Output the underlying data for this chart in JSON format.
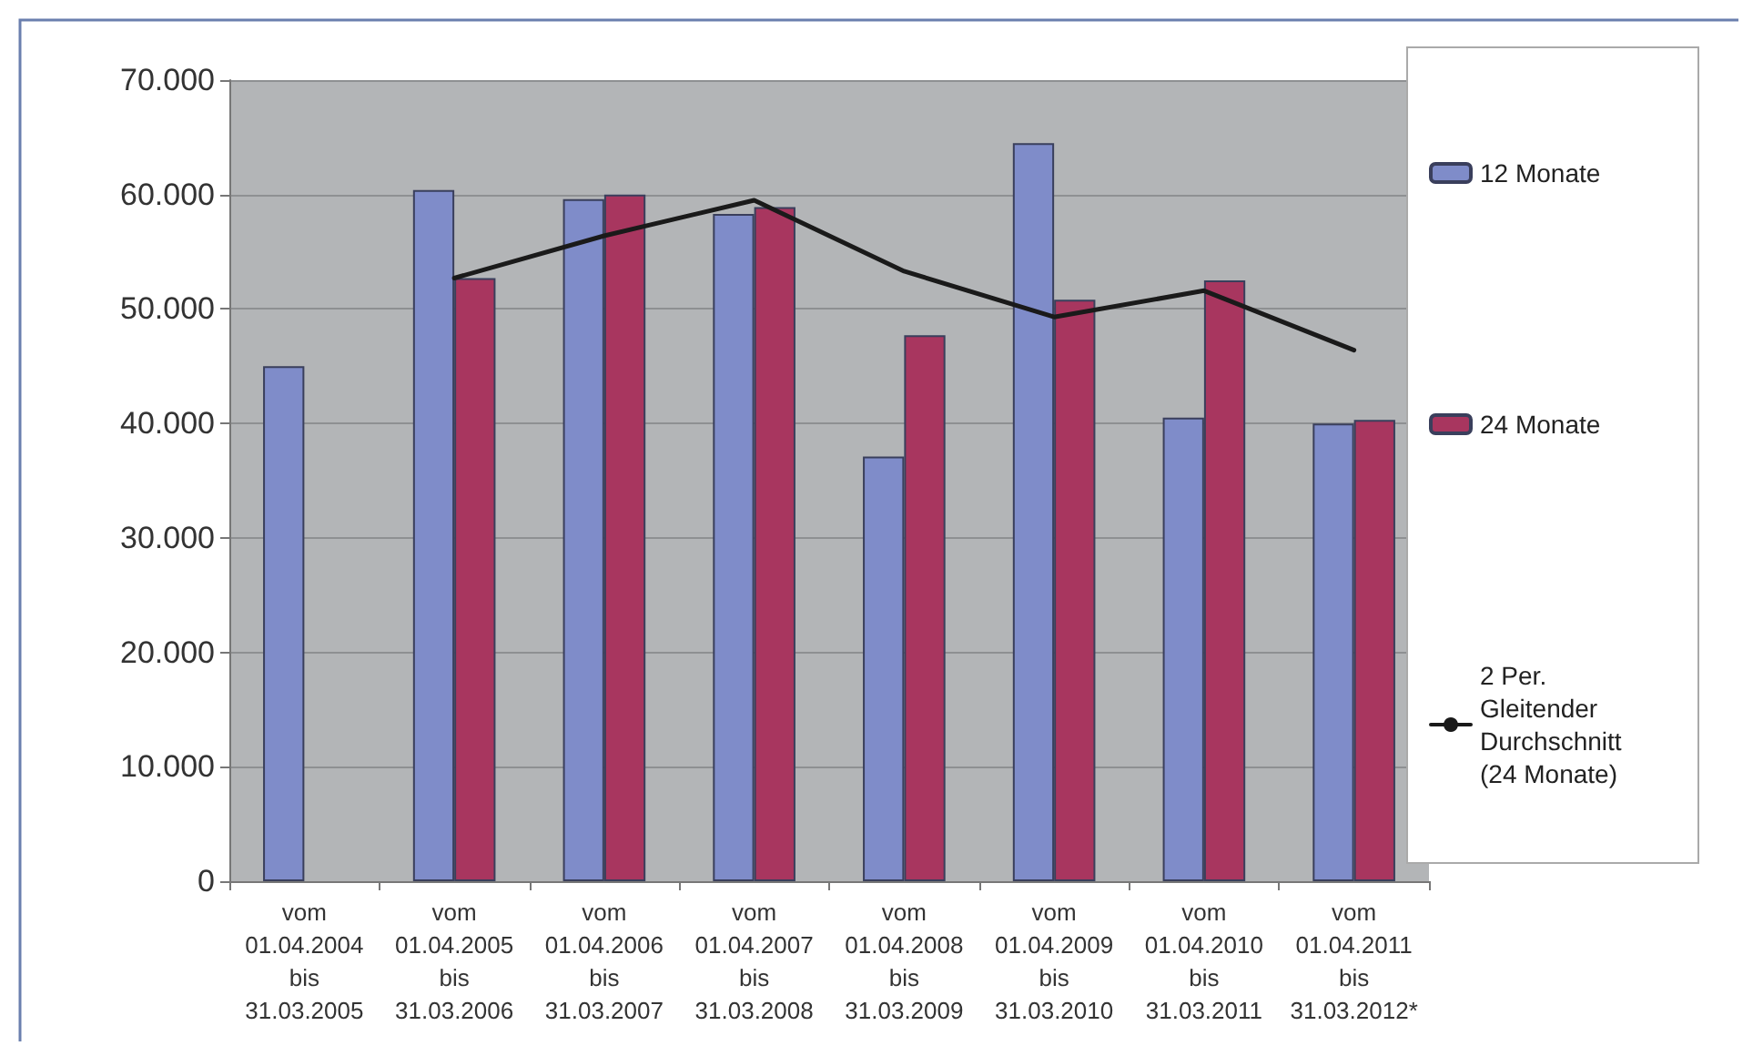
{
  "chart_data": {
    "type": "bar",
    "categories": [
      "vom\n01.04.2004\nbis\n31.03.2005",
      "vom\n01.04.2005\nbis\n31.03.2006",
      "vom\n01.04.2006\nbis\n31.03.2007",
      "vom\n01.04.2007\nbis\n31.03.2008",
      "vom\n01.04.2008\nbis\n31.03.2009",
      "vom\n01.04.2009\nbis\n31.03.2010",
      "vom\n01.04.2010\nbis\n31.03.2011",
      "vom\n01.04.2011\nbis\n31.03.2012*"
    ],
    "series": [
      {
        "name": "12 Monate",
        "color": "#7f8cc9",
        "values": [
          45000,
          60400,
          59600,
          58300,
          37100,
          64500,
          40500,
          40000
        ]
      },
      {
        "name": "24 Monate",
        "color": "#a8365f",
        "values": [
          null,
          52700,
          60000,
          58900,
          47700,
          50800,
          52500,
          40300
        ]
      },
      {
        "name": "2 Per. Gleitender Durchschnitt (24 Monate)",
        "type": "line",
        "color": "#1a1a1a",
        "values": [
          null,
          52700,
          56400,
          59500,
          53300,
          49300,
          51600,
          46400
        ]
      }
    ],
    "ylim": [
      0,
      70000
    ],
    "yticks": [
      0,
      {
        "value": 10000,
        "label": "10.000"
      },
      {
        "value": 20000,
        "label": "20.000"
      },
      {
        "value": 30000,
        "label": "30.000"
      },
      {
        "value": 40000,
        "label": "40.000"
      },
      {
        "value": 50000,
        "label": "50.000"
      },
      {
        "value": 60000,
        "label": "60.000"
      },
      {
        "value": 70000,
        "label": "70.000"
      }
    ],
    "grid": "y",
    "legend": "right",
    "marker": "none",
    "line_style": "solid"
  }
}
